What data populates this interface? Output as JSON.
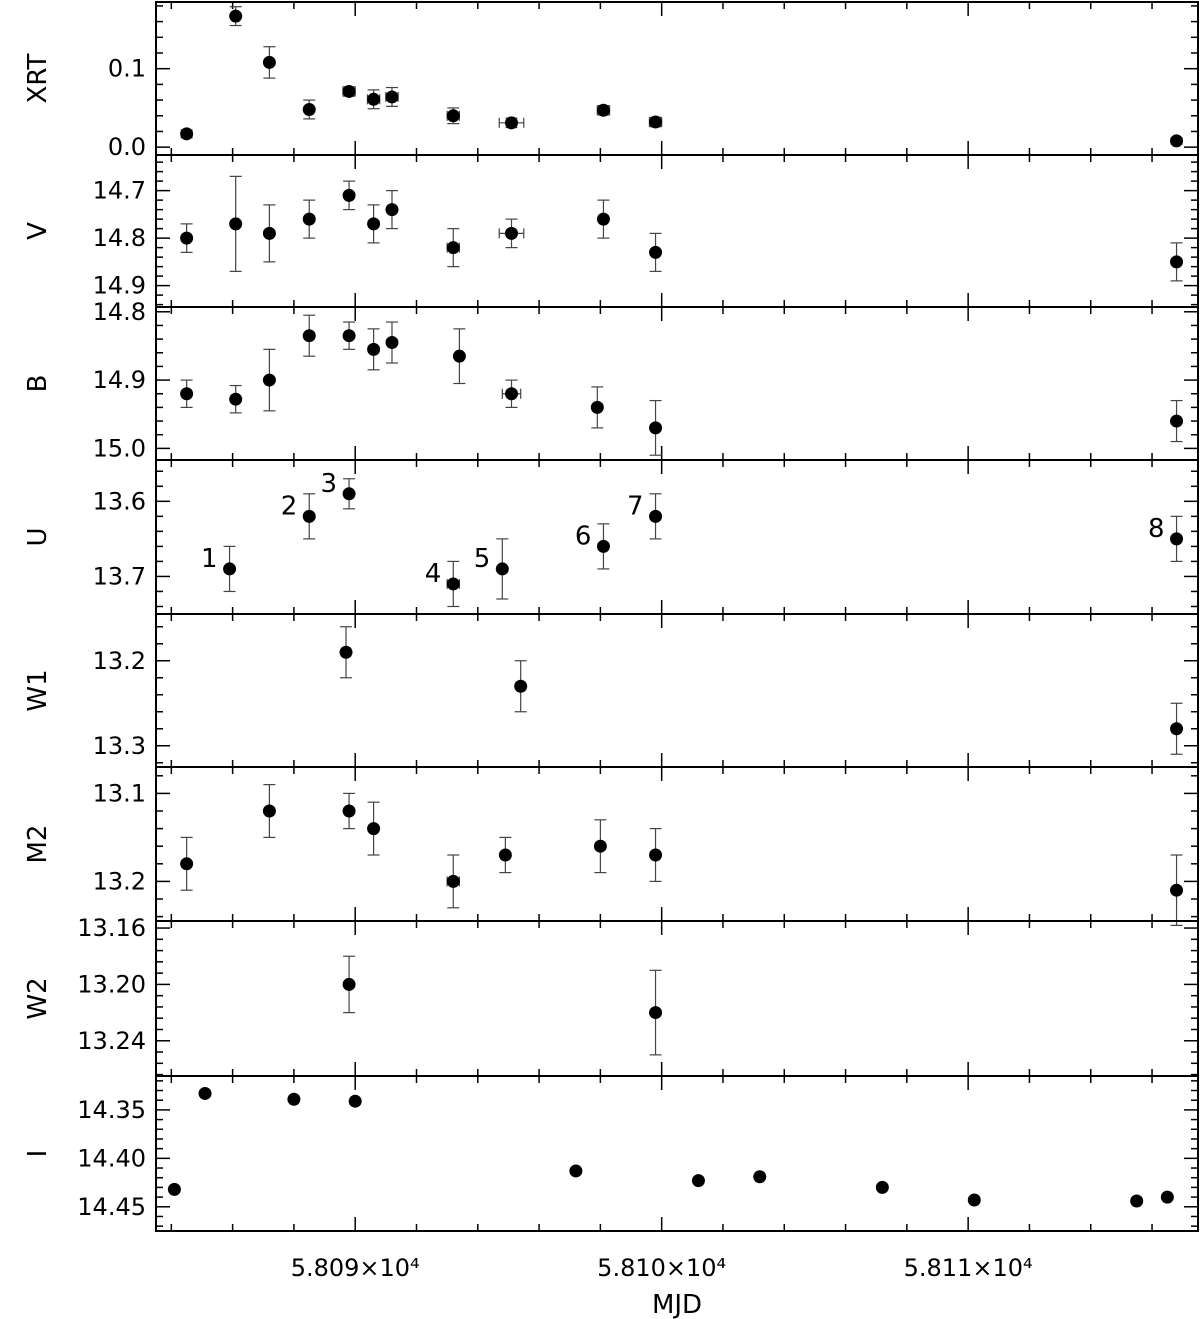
{
  "chart_data": {
    "type": "scatter",
    "xlabel": "MJD",
    "xlim": [
      58083.5,
      58117.5
    ],
    "x_ticks": [
      {
        "value": 58090,
        "label": "5.809×10⁴"
      },
      {
        "value": 58100,
        "label": "5.810×10⁴"
      },
      {
        "value": 58110,
        "label": "5.811×10⁴"
      }
    ],
    "panels": [
      {
        "name": "XRT",
        "ylabel": "XRT",
        "ylim": [
          -0.01,
          0.185
        ],
        "inverted": false,
        "yticks": [
          {
            "value": 0.0,
            "label": "0.0"
          },
          {
            "value": 0.1,
            "label": "0.1"
          }
        ],
        "points": [
          {
            "x": 58084.5,
            "y": 0.017,
            "yerr": 0.005,
            "xerr": 0
          },
          {
            "x": 58086.1,
            "y": 0.167,
            "yerr": 0.012,
            "xerr": 0
          },
          {
            "x": 58087.2,
            "y": 0.108,
            "yerr": 0.02,
            "xerr": 0
          },
          {
            "x": 58088.5,
            "y": 0.048,
            "yerr": 0.012,
            "xerr": 0
          },
          {
            "x": 58089.8,
            "y": 0.071,
            "yerr": 0.006,
            "xerr": 0.2
          },
          {
            "x": 58090.6,
            "y": 0.061,
            "yerr": 0.012,
            "xerr": 0.2
          },
          {
            "x": 58091.2,
            "y": 0.064,
            "yerr": 0.012,
            "xerr": 0.2
          },
          {
            "x": 58093.2,
            "y": 0.04,
            "yerr": 0.01,
            "xerr": 0.2
          },
          {
            "x": 58095.1,
            "y": 0.031,
            "yerr": 0.006,
            "xerr": 0.4
          },
          {
            "x": 58098.1,
            "y": 0.047,
            "yerr": 0.006,
            "xerr": 0.2
          },
          {
            "x": 58099.8,
            "y": 0.032,
            "yerr": 0.006,
            "xerr": 0.2
          },
          {
            "x": 58116.8,
            "y": 0.008,
            "yerr": 0.004,
            "xerr": 0
          }
        ]
      },
      {
        "name": "V",
        "ylabel": "V",
        "ylim": [
          14.945,
          14.625
        ],
        "inverted": true,
        "yticks": [
          {
            "value": 14.7,
            "label": "14.7"
          },
          {
            "value": 14.8,
            "label": "14.8"
          },
          {
            "value": 14.9,
            "label": "14.9"
          }
        ],
        "points": [
          {
            "x": 58084.5,
            "y": 14.8,
            "yerr": 0.03,
            "xerr": 0
          },
          {
            "x": 58086.1,
            "y": 14.77,
            "yerr": 0.1,
            "xerr": 0
          },
          {
            "x": 58087.2,
            "y": 14.79,
            "yerr": 0.06,
            "xerr": 0
          },
          {
            "x": 58088.5,
            "y": 14.76,
            "yerr": 0.04,
            "xerr": 0
          },
          {
            "x": 58089.8,
            "y": 14.71,
            "yerr": 0.03,
            "xerr": 0
          },
          {
            "x": 58090.6,
            "y": 14.77,
            "yerr": 0.04,
            "xerr": 0
          },
          {
            "x": 58091.2,
            "y": 14.74,
            "yerr": 0.04,
            "xerr": 0
          },
          {
            "x": 58093.2,
            "y": 14.82,
            "yerr": 0.04,
            "xerr": 0.2
          },
          {
            "x": 58095.1,
            "y": 14.79,
            "yerr": 0.03,
            "xerr": 0.4
          },
          {
            "x": 58098.1,
            "y": 14.76,
            "yerr": 0.04,
            "xerr": 0
          },
          {
            "x": 58099.8,
            "y": 14.83,
            "yerr": 0.04,
            "xerr": 0
          },
          {
            "x": 58116.8,
            "y": 14.85,
            "yerr": 0.04,
            "xerr": 0
          }
        ]
      },
      {
        "name": "B",
        "ylabel": "B",
        "ylim": [
          15.017,
          14.793
        ],
        "inverted": true,
        "yticks": [
          {
            "value": 14.8,
            "label": "14.8"
          },
          {
            "value": 14.9,
            "label": "14.9"
          },
          {
            "value": 15.0,
            "label": "15.0"
          }
        ],
        "points": [
          {
            "x": 58084.5,
            "y": 14.92,
            "yerr": 0.02,
            "xerr": 0
          },
          {
            "x": 58086.1,
            "y": 14.928,
            "yerr": 0.02,
            "xerr": 0
          },
          {
            "x": 58087.2,
            "y": 14.9,
            "yerr": 0.045,
            "xerr": 0
          },
          {
            "x": 58088.5,
            "y": 14.835,
            "yerr": 0.03,
            "xerr": 0
          },
          {
            "x": 58089.8,
            "y": 14.835,
            "yerr": 0.02,
            "xerr": 0
          },
          {
            "x": 58090.6,
            "y": 14.855,
            "yerr": 0.03,
            "xerr": 0
          },
          {
            "x": 58091.2,
            "y": 14.845,
            "yerr": 0.03,
            "xerr": 0
          },
          {
            "x": 58093.4,
            "y": 14.865,
            "yerr": 0.04,
            "xerr": 0
          },
          {
            "x": 58095.1,
            "y": 14.92,
            "yerr": 0.02,
            "xerr": 0.3
          },
          {
            "x": 58097.9,
            "y": 14.94,
            "yerr": 0.03,
            "xerr": 0
          },
          {
            "x": 58099.8,
            "y": 14.97,
            "yerr": 0.04,
            "xerr": 0
          },
          {
            "x": 58116.8,
            "y": 14.96,
            "yerr": 0.03,
            "xerr": 0
          }
        ]
      },
      {
        "name": "U",
        "ylabel": "U",
        "ylim": [
          13.75,
          13.545
        ],
        "inverted": true,
        "yticks": [
          {
            "value": 13.6,
            "label": "13.6"
          },
          {
            "value": 13.7,
            "label": "13.7"
          }
        ],
        "points": [
          {
            "x": 58085.9,
            "y": 13.69,
            "yerr": 0.03,
            "xerr": 0
          },
          {
            "x": 58088.5,
            "y": 13.62,
            "yerr": 0.03,
            "xerr": 0
          },
          {
            "x": 58089.8,
            "y": 13.59,
            "yerr": 0.02,
            "xerr": 0
          },
          {
            "x": 58093.2,
            "y": 13.71,
            "yerr": 0.03,
            "xerr": 0.2
          },
          {
            "x": 58094.8,
            "y": 13.69,
            "yerr": 0.04,
            "xerr": 0
          },
          {
            "x": 58098.1,
            "y": 13.66,
            "yerr": 0.03,
            "xerr": 0
          },
          {
            "x": 58099.8,
            "y": 13.62,
            "yerr": 0.03,
            "xerr": 0
          },
          {
            "x": 58116.8,
            "y": 13.65,
            "yerr": 0.03,
            "xerr": 0
          }
        ],
        "annotations": [
          {
            "text": "1",
            "x": 58085.9,
            "y": 13.69
          },
          {
            "text": "2",
            "x": 58088.5,
            "y": 13.62
          },
          {
            "text": "3",
            "x": 58089.8,
            "y": 13.59
          },
          {
            "text": "4",
            "x": 58093.2,
            "y": 13.71
          },
          {
            "text": "5",
            "x": 58094.8,
            "y": 13.69
          },
          {
            "text": "6",
            "x": 58098.1,
            "y": 13.66
          },
          {
            "text": "7",
            "x": 58099.8,
            "y": 13.62
          },
          {
            "text": "8",
            "x": 58116.8,
            "y": 13.65
          }
        ]
      },
      {
        "name": "W1",
        "ylabel": "W1",
        "ylim": [
          13.325,
          13.145
        ],
        "inverted": true,
        "yticks": [
          {
            "value": 13.2,
            "label": "13.2"
          },
          {
            "value": 13.3,
            "label": "13.3"
          }
        ],
        "points": [
          {
            "x": 58089.7,
            "y": 13.19,
            "yerr": 0.03,
            "xerr": 0
          },
          {
            "x": 58095.4,
            "y": 13.23,
            "yerr": 0.03,
            "xerr": 0
          },
          {
            "x": 58116.8,
            "y": 13.28,
            "yerr": 0.03,
            "xerr": 0
          }
        ]
      },
      {
        "name": "M2",
        "ylabel": "M2",
        "ylim": [
          13.245,
          13.07
        ],
        "inverted": true,
        "yticks": [
          {
            "value": 13.1,
            "label": "13.1"
          },
          {
            "value": 13.2,
            "label": "13.2"
          }
        ],
        "points": [
          {
            "x": 58084.5,
            "y": 13.18,
            "yerr": 0.03,
            "xerr": 0
          },
          {
            "x": 58087.2,
            "y": 13.12,
            "yerr": 0.03,
            "xerr": 0
          },
          {
            "x": 58089.8,
            "y": 13.12,
            "yerr": 0.02,
            "xerr": 0
          },
          {
            "x": 58090.6,
            "y": 13.14,
            "yerr": 0.03,
            "xerr": 0
          },
          {
            "x": 58093.2,
            "y": 13.2,
            "yerr": 0.03,
            "xerr": 0.2
          },
          {
            "x": 58094.9,
            "y": 13.17,
            "yerr": 0.02,
            "xerr": 0
          },
          {
            "x": 58098.0,
            "y": 13.16,
            "yerr": 0.03,
            "xerr": 0
          },
          {
            "x": 58099.8,
            "y": 13.17,
            "yerr": 0.03,
            "xerr": 0
          },
          {
            "x": 58116.8,
            "y": 13.21,
            "yerr": 0.04,
            "xerr": 0
          }
        ]
      },
      {
        "name": "W2",
        "ylabel": "W2",
        "ylim": [
          13.265,
          13.155
        ],
        "inverted": true,
        "yticks": [
          {
            "value": 13.16,
            "label": "13.16"
          },
          {
            "value": 13.2,
            "label": "13.20"
          },
          {
            "value": 13.24,
            "label": "13.24"
          }
        ],
        "points": [
          {
            "x": 58089.8,
            "y": 13.2,
            "yerr": 0.02,
            "xerr": 0
          },
          {
            "x": 58099.8,
            "y": 13.22,
            "yerr": 0.03,
            "xerr": 0
          }
        ]
      },
      {
        "name": "I",
        "ylabel": "I",
        "ylim": [
          14.475,
          14.315
        ],
        "inverted": true,
        "yticks": [
          {
            "value": 14.35,
            "label": "14.35"
          },
          {
            "value": 14.4,
            "label": "14.40"
          },
          {
            "value": 14.45,
            "label": "14.45"
          }
        ],
        "points": [
          {
            "x": 58084.1,
            "y": 14.432,
            "yerr": 0,
            "xerr": 0
          },
          {
            "x": 58085.1,
            "y": 14.333,
            "yerr": 0,
            "xerr": 0
          },
          {
            "x": 58088.0,
            "y": 14.339,
            "yerr": 0,
            "xerr": 0
          },
          {
            "x": 58090.0,
            "y": 14.341,
            "yerr": 0,
            "xerr": 0
          },
          {
            "x": 58097.2,
            "y": 14.413,
            "yerr": 0,
            "xerr": 0
          },
          {
            "x": 58101.2,
            "y": 14.423,
            "yerr": 0,
            "xerr": 0
          },
          {
            "x": 58103.2,
            "y": 14.419,
            "yerr": 0,
            "xerr": 0
          },
          {
            "x": 58107.2,
            "y": 14.43,
            "yerr": 0,
            "xerr": 0
          },
          {
            "x": 58110.2,
            "y": 14.443,
            "yerr": 0,
            "xerr": 0
          },
          {
            "x": 58115.5,
            "y": 14.444,
            "yerr": 0,
            "xerr": 0
          },
          {
            "x": 58116.5,
            "y": 14.44,
            "yerr": 0,
            "xerr": 0
          }
        ]
      }
    ]
  }
}
